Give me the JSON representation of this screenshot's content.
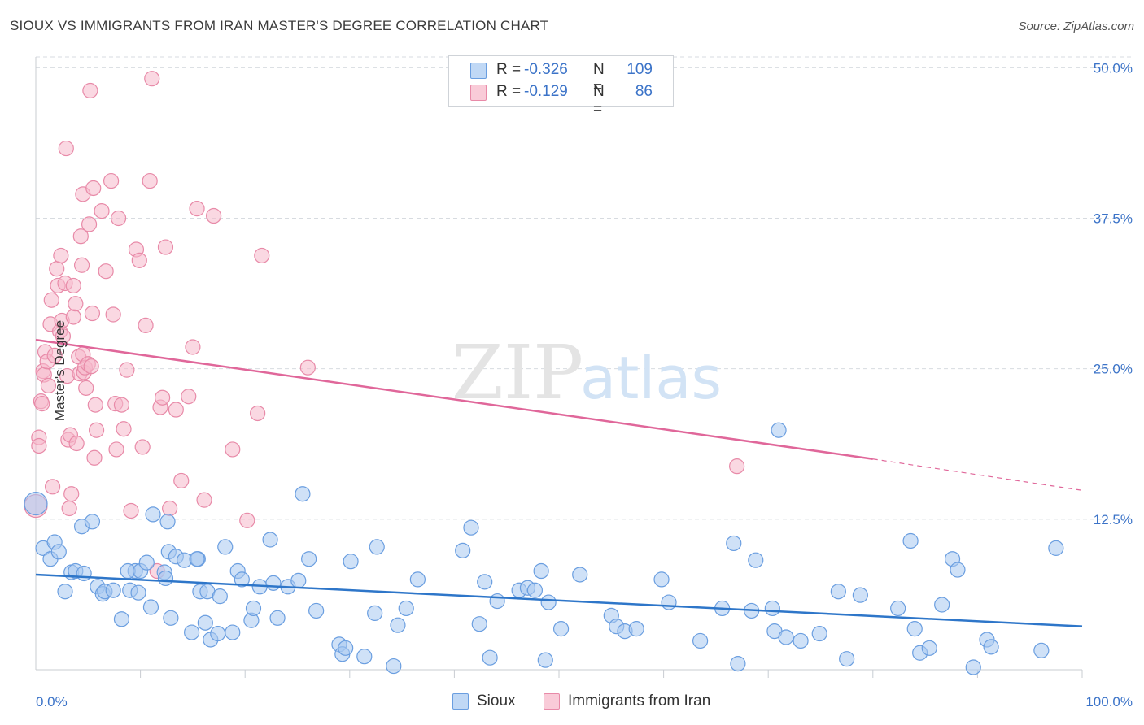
{
  "header": {
    "title": "SIOUX VS IMMIGRANTS FROM IRAN MASTER'S DEGREE CORRELATION CHART",
    "source": "Source: ZipAtlas.com"
  },
  "legend_top": {
    "rows": [
      {
        "r_label": "R =",
        "r_value": "-0.326",
        "n_label": "N =",
        "n_value": "109"
      },
      {
        "r_label": "R =",
        "r_value": "-0.129",
        "n_label": "N =",
        "n_value": "86"
      }
    ]
  },
  "legend_bottom": {
    "items": [
      {
        "label": "Sioux"
      },
      {
        "label": "Immigrants from Iran"
      }
    ]
  },
  "colors": {
    "sioux_fill": "#a8c8f0",
    "sioux_stroke": "#6a9ee0",
    "sioux_line": "#2e76c9",
    "iran_fill": "#f6b8ca",
    "iran_stroke": "#e88aa8",
    "iran_line": "#e0679a",
    "axis_text": "#3b73c8",
    "grid": "#d7dbe0",
    "watermark": "#e6e6e6",
    "watermark_blue": "#d2e3f5"
  },
  "watermark": {
    "zip": "ZIP",
    "atlas": "atlas"
  },
  "chart_data": {
    "type": "scatter",
    "title": "SIOUX VS IMMIGRANTS FROM IRAN MASTER'S DEGREE CORRELATION CHART",
    "xlabel": "",
    "ylabel": "Master's Degree",
    "xlim": [
      0,
      100
    ],
    "ylim": [
      0,
      50.9
    ],
    "x_tick_labels": [
      "0.0%",
      "100.0%"
    ],
    "y_ticks": [
      12.5,
      25.0,
      37.5,
      50.0
    ],
    "y_tick_labels": [
      "12.5%",
      "25.0%",
      "37.5%",
      "50.0%"
    ],
    "grid": "horizontal dashed",
    "legend_position": "top-center",
    "series": [
      {
        "name": "Sioux",
        "R": -0.326,
        "N": 109,
        "trend": {
          "x": [
            0,
            100
          ],
          "y": [
            7.9,
            3.6
          ]
        },
        "points": [
          [
            0.0,
            13.8
          ],
          [
            0.7,
            10.1
          ],
          [
            1.4,
            9.2
          ],
          [
            1.8,
            10.6
          ],
          [
            2.2,
            9.8
          ],
          [
            2.8,
            6.5
          ],
          [
            3.4,
            8.1
          ],
          [
            3.8,
            8.2
          ],
          [
            4.6,
            8.0
          ],
          [
            4.4,
            11.9
          ],
          [
            5.4,
            12.3
          ],
          [
            5.9,
            6.9
          ],
          [
            6.4,
            6.3
          ],
          [
            6.6,
            6.5
          ],
          [
            7.4,
            6.6
          ],
          [
            9.0,
            6.6
          ],
          [
            9.5,
            8.2
          ],
          [
            8.8,
            8.2
          ],
          [
            8.2,
            4.2
          ],
          [
            9.8,
            6.4
          ],
          [
            10.0,
            8.2
          ],
          [
            10.6,
            8.9
          ],
          [
            11.0,
            5.2
          ],
          [
            11.2,
            12.9
          ],
          [
            12.3,
            8.1
          ],
          [
            12.7,
            9.8
          ],
          [
            12.4,
            7.6
          ],
          [
            12.6,
            12.3
          ],
          [
            12.9,
            4.3
          ],
          [
            13.4,
            9.4
          ],
          [
            14.2,
            9.1
          ],
          [
            14.9,
            3.1
          ],
          [
            15.5,
            9.2
          ],
          [
            15.4,
            9.2
          ],
          [
            15.7,
            6.5
          ],
          [
            16.2,
            3.9
          ],
          [
            16.4,
            6.5
          ],
          [
            16.7,
            2.5
          ],
          [
            17.4,
            3.0
          ],
          [
            17.6,
            6.1
          ],
          [
            18.1,
            10.2
          ],
          [
            18.8,
            3.1
          ],
          [
            19.3,
            8.2
          ],
          [
            19.7,
            7.5
          ],
          [
            20.6,
            4.1
          ],
          [
            20.8,
            5.1
          ],
          [
            21.4,
            6.9
          ],
          [
            22.4,
            10.8
          ],
          [
            22.7,
            7.2
          ],
          [
            23.1,
            4.3
          ],
          [
            24.1,
            6.9
          ],
          [
            25.1,
            7.4
          ],
          [
            25.5,
            14.6
          ],
          [
            26.1,
            9.2
          ],
          [
            26.8,
            4.9
          ],
          [
            29.0,
            2.1
          ],
          [
            29.3,
            1.3
          ],
          [
            29.6,
            1.8
          ],
          [
            30.1,
            9.0
          ],
          [
            31.4,
            1.1
          ],
          [
            32.4,
            4.7
          ],
          [
            32.6,
            10.2
          ],
          [
            34.2,
            0.3
          ],
          [
            34.6,
            3.7
          ],
          [
            35.4,
            5.1
          ],
          [
            36.5,
            7.5
          ],
          [
            40.8,
            9.9
          ],
          [
            41.6,
            11.8
          ],
          [
            42.4,
            3.8
          ],
          [
            42.9,
            7.3
          ],
          [
            43.4,
            1.0
          ],
          [
            44.1,
            5.7
          ],
          [
            46.2,
            6.6
          ],
          [
            47.0,
            6.8
          ],
          [
            47.7,
            6.6
          ],
          [
            48.3,
            8.2
          ],
          [
            48.7,
            0.8
          ],
          [
            49.0,
            5.6
          ],
          [
            50.2,
            3.4
          ],
          [
            52.0,
            7.9
          ],
          [
            55.0,
            4.5
          ],
          [
            55.5,
            3.6
          ],
          [
            56.3,
            3.2
          ],
          [
            57.4,
            3.4
          ],
          [
            59.8,
            7.5
          ],
          [
            60.5,
            5.6
          ],
          [
            63.5,
            2.4
          ],
          [
            65.6,
            5.1
          ],
          [
            66.7,
            10.5
          ],
          [
            67.1,
            0.5
          ],
          [
            68.4,
            4.9
          ],
          [
            68.8,
            9.1
          ],
          [
            70.4,
            5.1
          ],
          [
            70.6,
            3.2
          ],
          [
            71.0,
            19.9
          ],
          [
            71.7,
            2.7
          ],
          [
            73.1,
            2.4
          ],
          [
            74.9,
            3.0
          ],
          [
            76.7,
            6.5
          ],
          [
            77.5,
            0.9
          ],
          [
            78.8,
            6.2
          ],
          [
            82.4,
            5.1
          ],
          [
            83.6,
            10.7
          ],
          [
            84.0,
            3.4
          ],
          [
            84.5,
            1.4
          ],
          [
            85.4,
            1.8
          ],
          [
            86.6,
            5.4
          ],
          [
            87.6,
            9.2
          ],
          [
            88.1,
            8.3
          ],
          [
            89.6,
            0.2
          ],
          [
            90.9,
            2.5
          ],
          [
            91.3,
            1.9
          ],
          [
            96.1,
            1.6
          ],
          [
            97.5,
            10.1
          ]
        ]
      },
      {
        "name": "Immigrants from Iran",
        "R": -0.129,
        "N": 86,
        "trend": {
          "x": [
            0,
            80
          ],
          "y": [
            27.4,
            17.5
          ],
          "dashed_to": [
            100,
            14.9
          ]
        },
        "points": [
          [
            0.0,
            13.6
          ],
          [
            0.3,
            19.3
          ],
          [
            0.3,
            18.6
          ],
          [
            0.5,
            22.3
          ],
          [
            0.6,
            22.1
          ],
          [
            0.7,
            24.8
          ],
          [
            0.8,
            24.5
          ],
          [
            0.9,
            26.4
          ],
          [
            1.1,
            25.6
          ],
          [
            1.2,
            23.6
          ],
          [
            1.4,
            28.7
          ],
          [
            1.5,
            30.7
          ],
          [
            1.6,
            15.2
          ],
          [
            1.8,
            26.1
          ],
          [
            2.0,
            33.3
          ],
          [
            2.1,
            31.9
          ],
          [
            2.3,
            28.1
          ],
          [
            2.4,
            34.4
          ],
          [
            2.5,
            29.0
          ],
          [
            2.6,
            27.7
          ],
          [
            2.8,
            32.1
          ],
          [
            2.9,
            43.3
          ],
          [
            3.0,
            24.4
          ],
          [
            3.1,
            19.1
          ],
          [
            3.3,
            19.5
          ],
          [
            3.2,
            13.4
          ],
          [
            3.4,
            14.6
          ],
          [
            3.6,
            29.3
          ],
          [
            3.8,
            30.4
          ],
          [
            3.6,
            31.9
          ],
          [
            3.9,
            18.8
          ],
          [
            4.1,
            26.0
          ],
          [
            4.2,
            24.6
          ],
          [
            4.3,
            36.0
          ],
          [
            4.4,
            33.6
          ],
          [
            4.5,
            26.2
          ],
          [
            4.6,
            24.7
          ],
          [
            4.7,
            25.1
          ],
          [
            4.5,
            39.5
          ],
          [
            4.8,
            23.4
          ],
          [
            5.0,
            25.4
          ],
          [
            5.1,
            37.0
          ],
          [
            5.2,
            48.1
          ],
          [
            5.3,
            25.2
          ],
          [
            5.4,
            29.6
          ],
          [
            5.5,
            40.0
          ],
          [
            5.6,
            17.6
          ],
          [
            5.7,
            22.0
          ],
          [
            5.8,
            19.9
          ],
          [
            6.3,
            38.1
          ],
          [
            6.7,
            33.1
          ],
          [
            7.2,
            40.6
          ],
          [
            7.4,
            29.5
          ],
          [
            7.6,
            22.1
          ],
          [
            7.7,
            18.3
          ],
          [
            7.9,
            37.5
          ],
          [
            8.2,
            22.0
          ],
          [
            8.4,
            20.0
          ],
          [
            8.7,
            24.9
          ],
          [
            9.1,
            13.2
          ],
          [
            9.6,
            34.9
          ],
          [
            9.9,
            34.0
          ],
          [
            10.2,
            18.5
          ],
          [
            10.5,
            28.6
          ],
          [
            10.9,
            40.6
          ],
          [
            11.1,
            49.1
          ],
          [
            11.6,
            8.2
          ],
          [
            11.9,
            21.8
          ],
          [
            12.1,
            22.6
          ],
          [
            12.4,
            35.1
          ],
          [
            12.8,
            13.4
          ],
          [
            13.4,
            21.6
          ],
          [
            13.9,
            15.7
          ],
          [
            14.6,
            22.7
          ],
          [
            15.0,
            26.8
          ],
          [
            15.4,
            38.3
          ],
          [
            16.1,
            14.1
          ],
          [
            17.0,
            37.7
          ],
          [
            18.8,
            18.3
          ],
          [
            20.2,
            12.4
          ],
          [
            21.2,
            21.3
          ],
          [
            21.6,
            34.4
          ],
          [
            26.0,
            25.1
          ],
          [
            67.0,
            16.9
          ]
        ]
      }
    ]
  }
}
